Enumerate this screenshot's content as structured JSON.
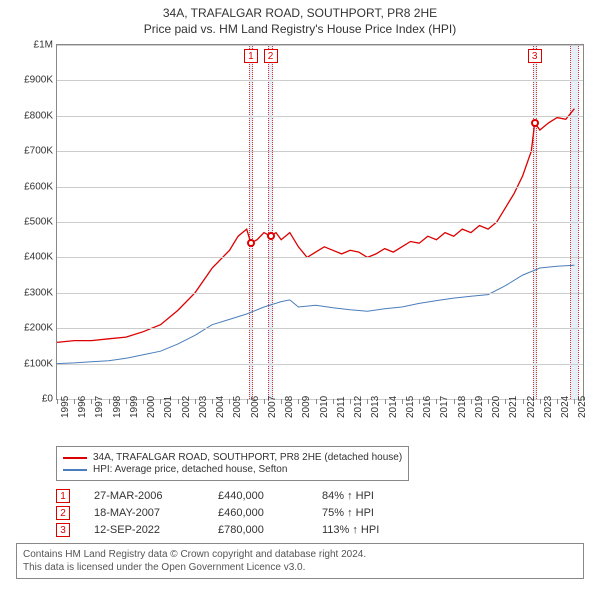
{
  "title": "34A, TRAFALGAR ROAD, SOUTHPORT, PR8 2HE",
  "subtitle": "Price paid vs. HM Land Registry's House Price Index (HPI)",
  "chart": {
    "type": "line",
    "background_color": "#ffffff",
    "grid_color": "#cccccc",
    "axis_color": "#888888",
    "xlim": [
      1995,
      2025.5
    ],
    "ylim": [
      0,
      1000000
    ],
    "ytick_step": 100000,
    "ytick_labels": [
      "£0",
      "£100K",
      "£200K",
      "£300K",
      "£400K",
      "£500K",
      "£600K",
      "£700K",
      "£800K",
      "£900K",
      "£1M"
    ],
    "xticks": [
      1995,
      1996,
      1997,
      1998,
      1999,
      2000,
      2001,
      2002,
      2003,
      2004,
      2005,
      2006,
      2007,
      2008,
      2009,
      2010,
      2011,
      2012,
      2013,
      2014,
      2015,
      2016,
      2017,
      2018,
      2019,
      2020,
      2021,
      2022,
      2023,
      2024,
      2025
    ],
    "label_fontsize": 10,
    "series": [
      {
        "key": "price_paid",
        "label": "34A, TRAFALGAR ROAD, SOUTHPORT, PR8 2HE (detached house)",
        "color": "#dd0000",
        "line_width": 1.3,
        "data": [
          [
            1995,
            160000
          ],
          [
            1996,
            165000
          ],
          [
            1997,
            165000
          ],
          [
            1998,
            170000
          ],
          [
            1999,
            175000
          ],
          [
            2000,
            190000
          ],
          [
            2001,
            210000
          ],
          [
            2002,
            250000
          ],
          [
            2003,
            300000
          ],
          [
            2004,
            370000
          ],
          [
            2005,
            420000
          ],
          [
            2005.5,
            460000
          ],
          [
            2006,
            480000
          ],
          [
            2006.24,
            440000
          ],
          [
            2006.6,
            450000
          ],
          [
            2007,
            470000
          ],
          [
            2007.38,
            460000
          ],
          [
            2007.7,
            470000
          ],
          [
            2008,
            450000
          ],
          [
            2008.5,
            470000
          ],
          [
            2009,
            430000
          ],
          [
            2009.5,
            400000
          ],
          [
            2010,
            415000
          ],
          [
            2010.5,
            430000
          ],
          [
            2011,
            420000
          ],
          [
            2011.5,
            410000
          ],
          [
            2012,
            420000
          ],
          [
            2012.5,
            415000
          ],
          [
            2013,
            400000
          ],
          [
            2013.5,
            410000
          ],
          [
            2014,
            425000
          ],
          [
            2014.5,
            415000
          ],
          [
            2015,
            430000
          ],
          [
            2015.5,
            445000
          ],
          [
            2016,
            440000
          ],
          [
            2016.5,
            460000
          ],
          [
            2017,
            450000
          ],
          [
            2017.5,
            470000
          ],
          [
            2018,
            460000
          ],
          [
            2018.5,
            480000
          ],
          [
            2019,
            470000
          ],
          [
            2019.5,
            490000
          ],
          [
            2020,
            480000
          ],
          [
            2020.5,
            500000
          ],
          [
            2021,
            540000
          ],
          [
            2021.5,
            580000
          ],
          [
            2022,
            630000
          ],
          [
            2022.5,
            700000
          ],
          [
            2022.7,
            780000
          ],
          [
            2023,
            760000
          ],
          [
            2023.5,
            780000
          ],
          [
            2024,
            795000
          ],
          [
            2024.5,
            790000
          ],
          [
            2025,
            820000
          ]
        ]
      },
      {
        "key": "hpi",
        "label": "HPI: Average price, detached house, Sefton",
        "color": "#4a7ebb",
        "line_width": 1.0,
        "data": [
          [
            1995,
            100000
          ],
          [
            1996,
            102000
          ],
          [
            1997,
            105000
          ],
          [
            1998,
            108000
          ],
          [
            1999,
            115000
          ],
          [
            2000,
            125000
          ],
          [
            2001,
            135000
          ],
          [
            2002,
            155000
          ],
          [
            2003,
            180000
          ],
          [
            2004,
            210000
          ],
          [
            2005,
            225000
          ],
          [
            2006,
            240000
          ],
          [
            2007,
            260000
          ],
          [
            2008,
            275000
          ],
          [
            2008.5,
            280000
          ],
          [
            2009,
            260000
          ],
          [
            2010,
            265000
          ],
          [
            2011,
            258000
          ],
          [
            2012,
            252000
          ],
          [
            2013,
            248000
          ],
          [
            2014,
            255000
          ],
          [
            2015,
            260000
          ],
          [
            2016,
            270000
          ],
          [
            2017,
            278000
          ],
          [
            2018,
            285000
          ],
          [
            2019,
            290000
          ],
          [
            2020,
            295000
          ],
          [
            2021,
            320000
          ],
          [
            2022,
            350000
          ],
          [
            2023,
            370000
          ],
          [
            2024,
            375000
          ],
          [
            2025,
            378000
          ]
        ]
      }
    ],
    "markers": [
      {
        "id": "1",
        "x": 2006.24,
        "y": 440000,
        "color": "#dd0000"
      },
      {
        "id": "2",
        "x": 2007.38,
        "y": 460000,
        "color": "#dd0000"
      },
      {
        "id": "3",
        "x": 2022.7,
        "y": 780000,
        "color": "#dd0000"
      }
    ],
    "vbands": [
      {
        "x": 2006.24,
        "width": 0.25
      },
      {
        "x": 2007.38,
        "width": 0.25
      },
      {
        "x": 2022.7,
        "width": 0.25
      },
      {
        "x": 2025.0,
        "width": 0.5
      }
    ],
    "callout_border": "#dd0000",
    "callout_bg": "#ffffff"
  },
  "legend": {
    "items": [
      {
        "color": "#dd0000",
        "label": "34A, TRAFALGAR ROAD, SOUTHPORT, PR8 2HE (detached house)"
      },
      {
        "color": "#4a7ebb",
        "label": "HPI: Average price, detached house, Sefton"
      }
    ]
  },
  "events": [
    {
      "id": "1",
      "date": "27-MAR-2006",
      "price": "£440,000",
      "pct": "84% ↑ HPI"
    },
    {
      "id": "2",
      "date": "18-MAY-2007",
      "price": "£460,000",
      "pct": "75% ↑ HPI"
    },
    {
      "id": "3",
      "date": "12-SEP-2022",
      "price": "£780,000",
      "pct": "113% ↑ HPI"
    }
  ],
  "attribution": {
    "line1": "Contains HM Land Registry data © Crown copyright and database right 2024.",
    "line2": "This data is licensed under the Open Government Licence v3.0."
  }
}
